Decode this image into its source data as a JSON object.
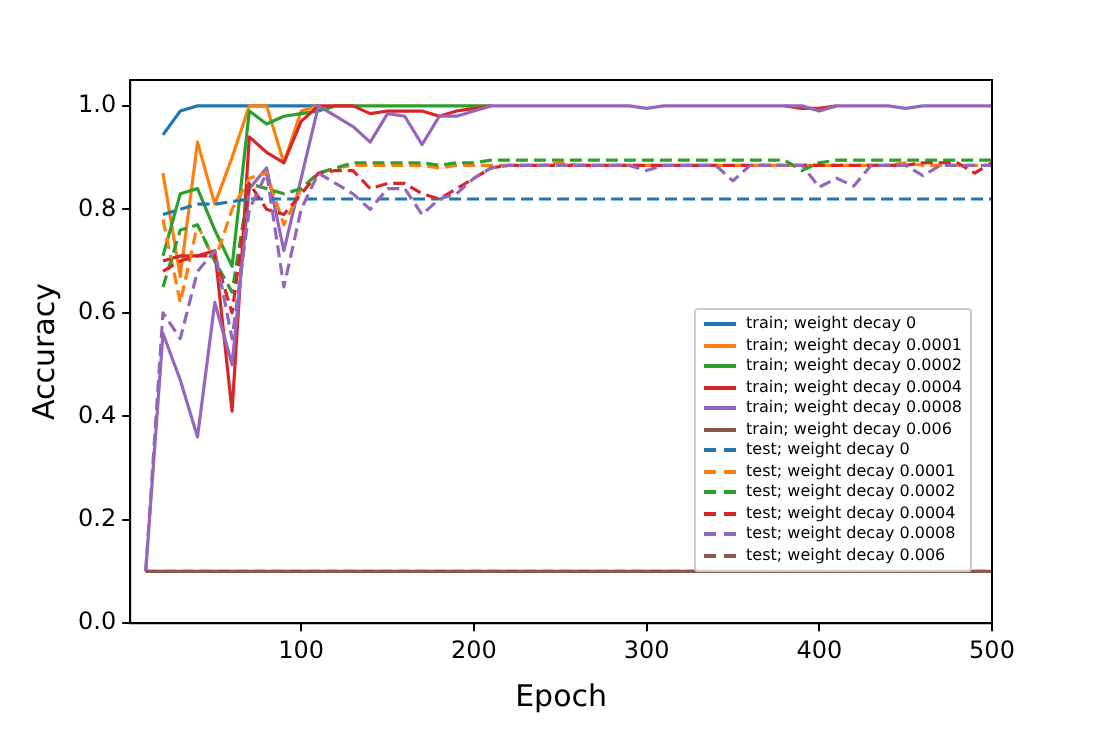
{
  "chart_data": {
    "type": "line",
    "xlabel": "Epoch",
    "ylabel": "Accuracy",
    "xlim": [
      1,
      500
    ],
    "xticks": [
      100,
      200,
      300,
      400,
      500
    ],
    "ylim": [
      0,
      1.05
    ],
    "yticks": [
      {
        "value": 0,
        "label": "0.0"
      },
      0.2,
      0.4,
      0.6,
      0.8,
      {
        "value": 1,
        "label": "1.0"
      }
    ],
    "grid": false,
    "legend": "bottom right",
    "x": [
      10,
      20,
      30,
      40,
      50,
      60,
      70,
      80,
      90,
      100,
      110,
      120,
      130,
      140,
      150,
      160,
      170,
      180,
      190,
      200,
      210,
      220,
      230,
      240,
      250,
      260,
      270,
      280,
      290,
      300,
      310,
      320,
      330,
      340,
      350,
      360,
      370,
      380,
      390,
      400,
      410,
      420,
      430,
      440,
      450,
      460,
      470,
      480,
      490,
      500
    ],
    "series": [
      {
        "name": "train; weight decay 0",
        "color": "#1f77b4",
        "line_style": "solid",
        "values": [
          null,
          0.944,
          0.99,
          1,
          1,
          1,
          1,
          1,
          1,
          1,
          1,
          null,
          null,
          null,
          null,
          null,
          null,
          null,
          null,
          null,
          null,
          null,
          null,
          null,
          null,
          null,
          null,
          null,
          null,
          null,
          null,
          null,
          null,
          null,
          null,
          null,
          null,
          null,
          null,
          null,
          null,
          null,
          null,
          null,
          null,
          null,
          null,
          null,
          null,
          null
        ]
      },
      {
        "name": "train; weight decay 0.0001",
        "color": "#ff7f0e",
        "line_style": "solid",
        "values": [
          null,
          0.87,
          0.67,
          0.93,
          0.81,
          0.9,
          1,
          1,
          0.89,
          0.99,
          1,
          null,
          null,
          null,
          null,
          null,
          null,
          null,
          null,
          null,
          null,
          null,
          null,
          null,
          null,
          null,
          null,
          null,
          null,
          null,
          null,
          null,
          null,
          null,
          null,
          null,
          null,
          null,
          null,
          null,
          null,
          null,
          null,
          null,
          null,
          null,
          null,
          null,
          null,
          null
        ]
      },
      {
        "name": "train; weight decay 0.0002",
        "color": "#2ca02c",
        "line_style": "solid",
        "values": [
          null,
          0.71,
          0.83,
          0.84,
          0.76,
          0.69,
          0.99,
          0.965,
          0.98,
          0.985,
          0.99,
          1,
          1,
          1,
          1,
          1,
          1,
          1,
          1,
          1,
          1,
          null,
          null,
          null,
          null,
          null,
          null,
          null,
          null,
          null,
          null,
          null,
          null,
          null,
          null,
          null,
          null,
          null,
          null,
          null,
          null,
          null,
          null,
          null,
          null,
          null,
          null,
          null,
          null,
          null
        ]
      },
      {
        "name": "train; weight decay 0.0004",
        "color": "#d62728",
        "line_style": "solid",
        "values": [
          null,
          0.7,
          0.71,
          0.71,
          0.72,
          0.41,
          0.94,
          0.91,
          0.89,
          0.97,
          1,
          1,
          1,
          0.985,
          0.99,
          0.99,
          0.99,
          0.98,
          0.99,
          0.995,
          1,
          null,
          null,
          null,
          null,
          null,
          null,
          null,
          null,
          null,
          null,
          null,
          null,
          null,
          null,
          null,
          null,
          1,
          0.995,
          0.995,
          1,
          null,
          null,
          null,
          null,
          null,
          null,
          null,
          null,
          null
        ]
      },
      {
        "name": "train; weight decay 0.0008",
        "color": "#9467bd",
        "line_style": "solid",
        "values": [
          0.1,
          0.56,
          0.47,
          0.36,
          0.62,
          0.5,
          0.84,
          0.88,
          0.72,
          0.86,
          1,
          0.98,
          0.96,
          0.93,
          0.985,
          0.98,
          0.925,
          0.98,
          0.98,
          0.99,
          1,
          1,
          1,
          1,
          1,
          1,
          1,
          1,
          1,
          0.995,
          1,
          1,
          1,
          1,
          1,
          1,
          1,
          1,
          1,
          0.99,
          1,
          1,
          1,
          1,
          0.995,
          1,
          1,
          1,
          1,
          1
        ]
      },
      {
        "name": "train; weight decay 0.006",
        "color": "#8c564b",
        "line_style": "solid",
        "values": [
          0.1,
          0.1,
          0.1,
          0.1,
          0.1,
          0.1,
          0.1,
          0.1,
          0.1,
          0.1,
          0.1,
          0.1,
          0.1,
          0.1,
          0.1,
          0.1,
          0.1,
          0.1,
          0.1,
          0.1,
          0.1,
          0.1,
          0.1,
          0.1,
          0.1,
          0.1,
          0.1,
          0.1,
          0.1,
          0.1,
          0.1,
          0.1,
          0.1,
          0.1,
          0.1,
          0.1,
          0.1,
          0.1,
          0.1,
          0.1,
          0.1,
          0.1,
          0.1,
          0.1,
          0.1,
          0.1,
          0.1,
          0.1,
          0.1,
          0.1
        ]
      },
      {
        "name": "test; weight decay 0",
        "color": "#1f77b4",
        "line_style": "dashed",
        "values": [
          null,
          0.79,
          0.8,
          0.81,
          0.81,
          0.815,
          0.82,
          0.82,
          0.82,
          0.82,
          0.82,
          0.82,
          0.82,
          0.82,
          0.82,
          0.82,
          0.82,
          0.82,
          0.82,
          0.82,
          0.82,
          0.82,
          0.82,
          0.82,
          0.82,
          0.82,
          0.82,
          0.82,
          0.82,
          0.82,
          0.82,
          0.82,
          0.82,
          0.82,
          0.82,
          0.82,
          0.82,
          0.82,
          0.82,
          0.82,
          0.82,
          0.82,
          0.82,
          0.82,
          0.82,
          0.82,
          0.82,
          0.82,
          0.82,
          0.82
        ]
      },
      {
        "name": "test; weight decay 0.0001",
        "color": "#ff7f0e",
        "line_style": "dashed",
        "values": [
          null,
          0.78,
          0.62,
          0.77,
          0.7,
          0.8,
          0.86,
          0.87,
          0.77,
          0.84,
          0.87,
          0.88,
          0.885,
          0.885,
          0.885,
          0.885,
          0.885,
          0.88,
          0.885,
          0.885,
          0.885,
          0.885,
          0.885,
          0.885,
          0.89,
          0.885,
          0.885,
          0.885,
          0.885,
          0.885,
          0.885,
          0.885,
          0.885,
          0.885,
          0.885,
          0.885,
          0.885,
          0.885,
          0.885,
          0.885,
          0.885,
          0.885,
          0.885,
          0.885,
          0.89,
          0.885,
          0.885,
          0.885,
          0.885,
          0.885
        ]
      },
      {
        "name": "test; weight decay 0.0002",
        "color": "#2ca02c",
        "line_style": "dashed",
        "values": [
          null,
          0.65,
          0.76,
          0.77,
          0.7,
          0.64,
          0.85,
          0.84,
          0.83,
          0.84,
          0.87,
          0.88,
          0.89,
          0.89,
          0.89,
          0.89,
          0.89,
          0.885,
          0.89,
          0.89,
          0.895,
          0.895,
          0.895,
          0.895,
          0.895,
          0.895,
          0.895,
          0.895,
          0.895,
          0.895,
          0.895,
          0.895,
          0.895,
          0.895,
          0.895,
          0.895,
          0.895,
          0.895,
          0.875,
          0.89,
          0.895,
          0.895,
          0.895,
          0.895,
          0.895,
          0.895,
          0.895,
          0.895,
          0.895,
          0.895
        ]
      },
      {
        "name": "test; weight decay 0.0004",
        "color": "#d62728",
        "line_style": "dashed",
        "values": [
          null,
          0.68,
          0.7,
          0.71,
          0.71,
          0.6,
          0.85,
          0.8,
          0.79,
          0.83,
          0.87,
          0.875,
          0.875,
          0.84,
          0.85,
          0.85,
          0.83,
          0.82,
          0.84,
          0.86,
          0.88,
          0.885,
          0.885,
          0.885,
          0.885,
          0.885,
          0.885,
          0.885,
          0.885,
          0.885,
          0.885,
          0.885,
          0.885,
          0.885,
          0.885,
          0.885,
          0.885,
          0.885,
          0.885,
          0.885,
          0.885,
          0.885,
          0.885,
          0.885,
          0.885,
          0.89,
          0.89,
          0.89,
          0.87,
          0.89
        ]
      },
      {
        "name": "test; weight decay 0.0008",
        "color": "#9467bd",
        "line_style": "dashed",
        "values": [
          0.1,
          0.6,
          0.55,
          0.68,
          0.72,
          0.55,
          0.8,
          0.87,
          0.65,
          0.8,
          0.87,
          0.85,
          0.83,
          0.8,
          0.84,
          0.84,
          0.79,
          0.82,
          0.83,
          0.86,
          0.88,
          0.885,
          0.885,
          0.885,
          0.885,
          0.885,
          0.885,
          0.885,
          0.885,
          0.875,
          0.885,
          0.885,
          0.885,
          0.885,
          0.855,
          0.885,
          0.885,
          0.885,
          0.885,
          0.843,
          0.86,
          0.845,
          0.885,
          0.885,
          0.885,
          0.865,
          0.885,
          0.885,
          0.885,
          0.885
        ]
      },
      {
        "name": "test; weight decay 0.006",
        "color": "#8c564b",
        "line_style": "dashed",
        "values": [
          0.1,
          0.1,
          0.1,
          0.1,
          0.1,
          0.1,
          0.1,
          0.1,
          0.1,
          0.1,
          0.1,
          0.1,
          0.1,
          0.1,
          0.1,
          0.1,
          0.1,
          0.1,
          0.1,
          0.1,
          0.1,
          0.1,
          0.1,
          0.1,
          0.1,
          0.1,
          0.1,
          0.1,
          0.1,
          0.1,
          0.1,
          0.1,
          0.1,
          0.1,
          0.1,
          0.1,
          0.1,
          0.1,
          0.1,
          0.1,
          0.1,
          0.1,
          0.1,
          0.1,
          0.1,
          0.1,
          0.1,
          0.1,
          0.1,
          0.1
        ]
      }
    ]
  }
}
